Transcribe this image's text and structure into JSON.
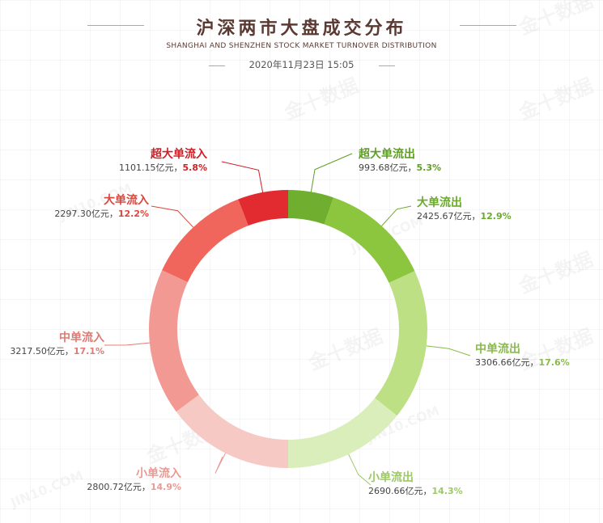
{
  "header": {
    "title": "沪深两市大盘成交分布",
    "subtitle": "SHANGHAI AND SHENZHEN STOCK MARKET TURNOVER DISTRIBUTION",
    "date": "2020年11月23日 15:05"
  },
  "unit": "亿元",
  "watermark": [
    "金十数据",
    "JIN10.COM"
  ],
  "chart_data": {
    "type": "pie",
    "donut": true,
    "title": "沪深两市大盘成交分布",
    "series": [
      {
        "name": "超大单流出",
        "value": 993.68,
        "value_label": "993.68亿元",
        "pct": "5.3%",
        "color": "#6fae2f"
      },
      {
        "name": "大单流出",
        "value": 2425.67,
        "value_label": "2425.67亿元",
        "pct": "12.9%",
        "color": "#8cc63f"
      },
      {
        "name": "中单流出",
        "value": 3306.66,
        "value_label": "3306.66亿元",
        "pct": "17.6%",
        "color": "#bde085"
      },
      {
        "name": "小单流出",
        "value": 2690.66,
        "value_label": "2690.66亿元",
        "pct": "14.3%",
        "color": "#daeebb"
      },
      {
        "name": "小单流入",
        "value": 2800.72,
        "value_label": "2800.72亿元",
        "pct": "14.9%",
        "color": "#f6c9c4"
      },
      {
        "name": "中单流入",
        "value": 3217.5,
        "value_label": "3217.50亿元",
        "pct": "17.1%",
        "color": "#f39993"
      },
      {
        "name": "大单流入",
        "value": 2297.3,
        "value_label": "2297.30亿元",
        "pct": "12.2%",
        "color": "#f0655c"
      },
      {
        "name": "超大单流入",
        "value": 1101.15,
        "value_label": "1101.15亿元",
        "pct": "5.8%",
        "color": "#e12b30"
      }
    ],
    "label_colors": {
      "超大单流出": "#5e9e25",
      "大单流出": "#6aaa2a",
      "中单流出": "#8abb4a",
      "小单流出": "#9dc867",
      "小单流入": "#e89a94",
      "中单流入": "#e07a72",
      "大单流入": "#d9473f",
      "超大单流入": "#cf2027"
    }
  }
}
